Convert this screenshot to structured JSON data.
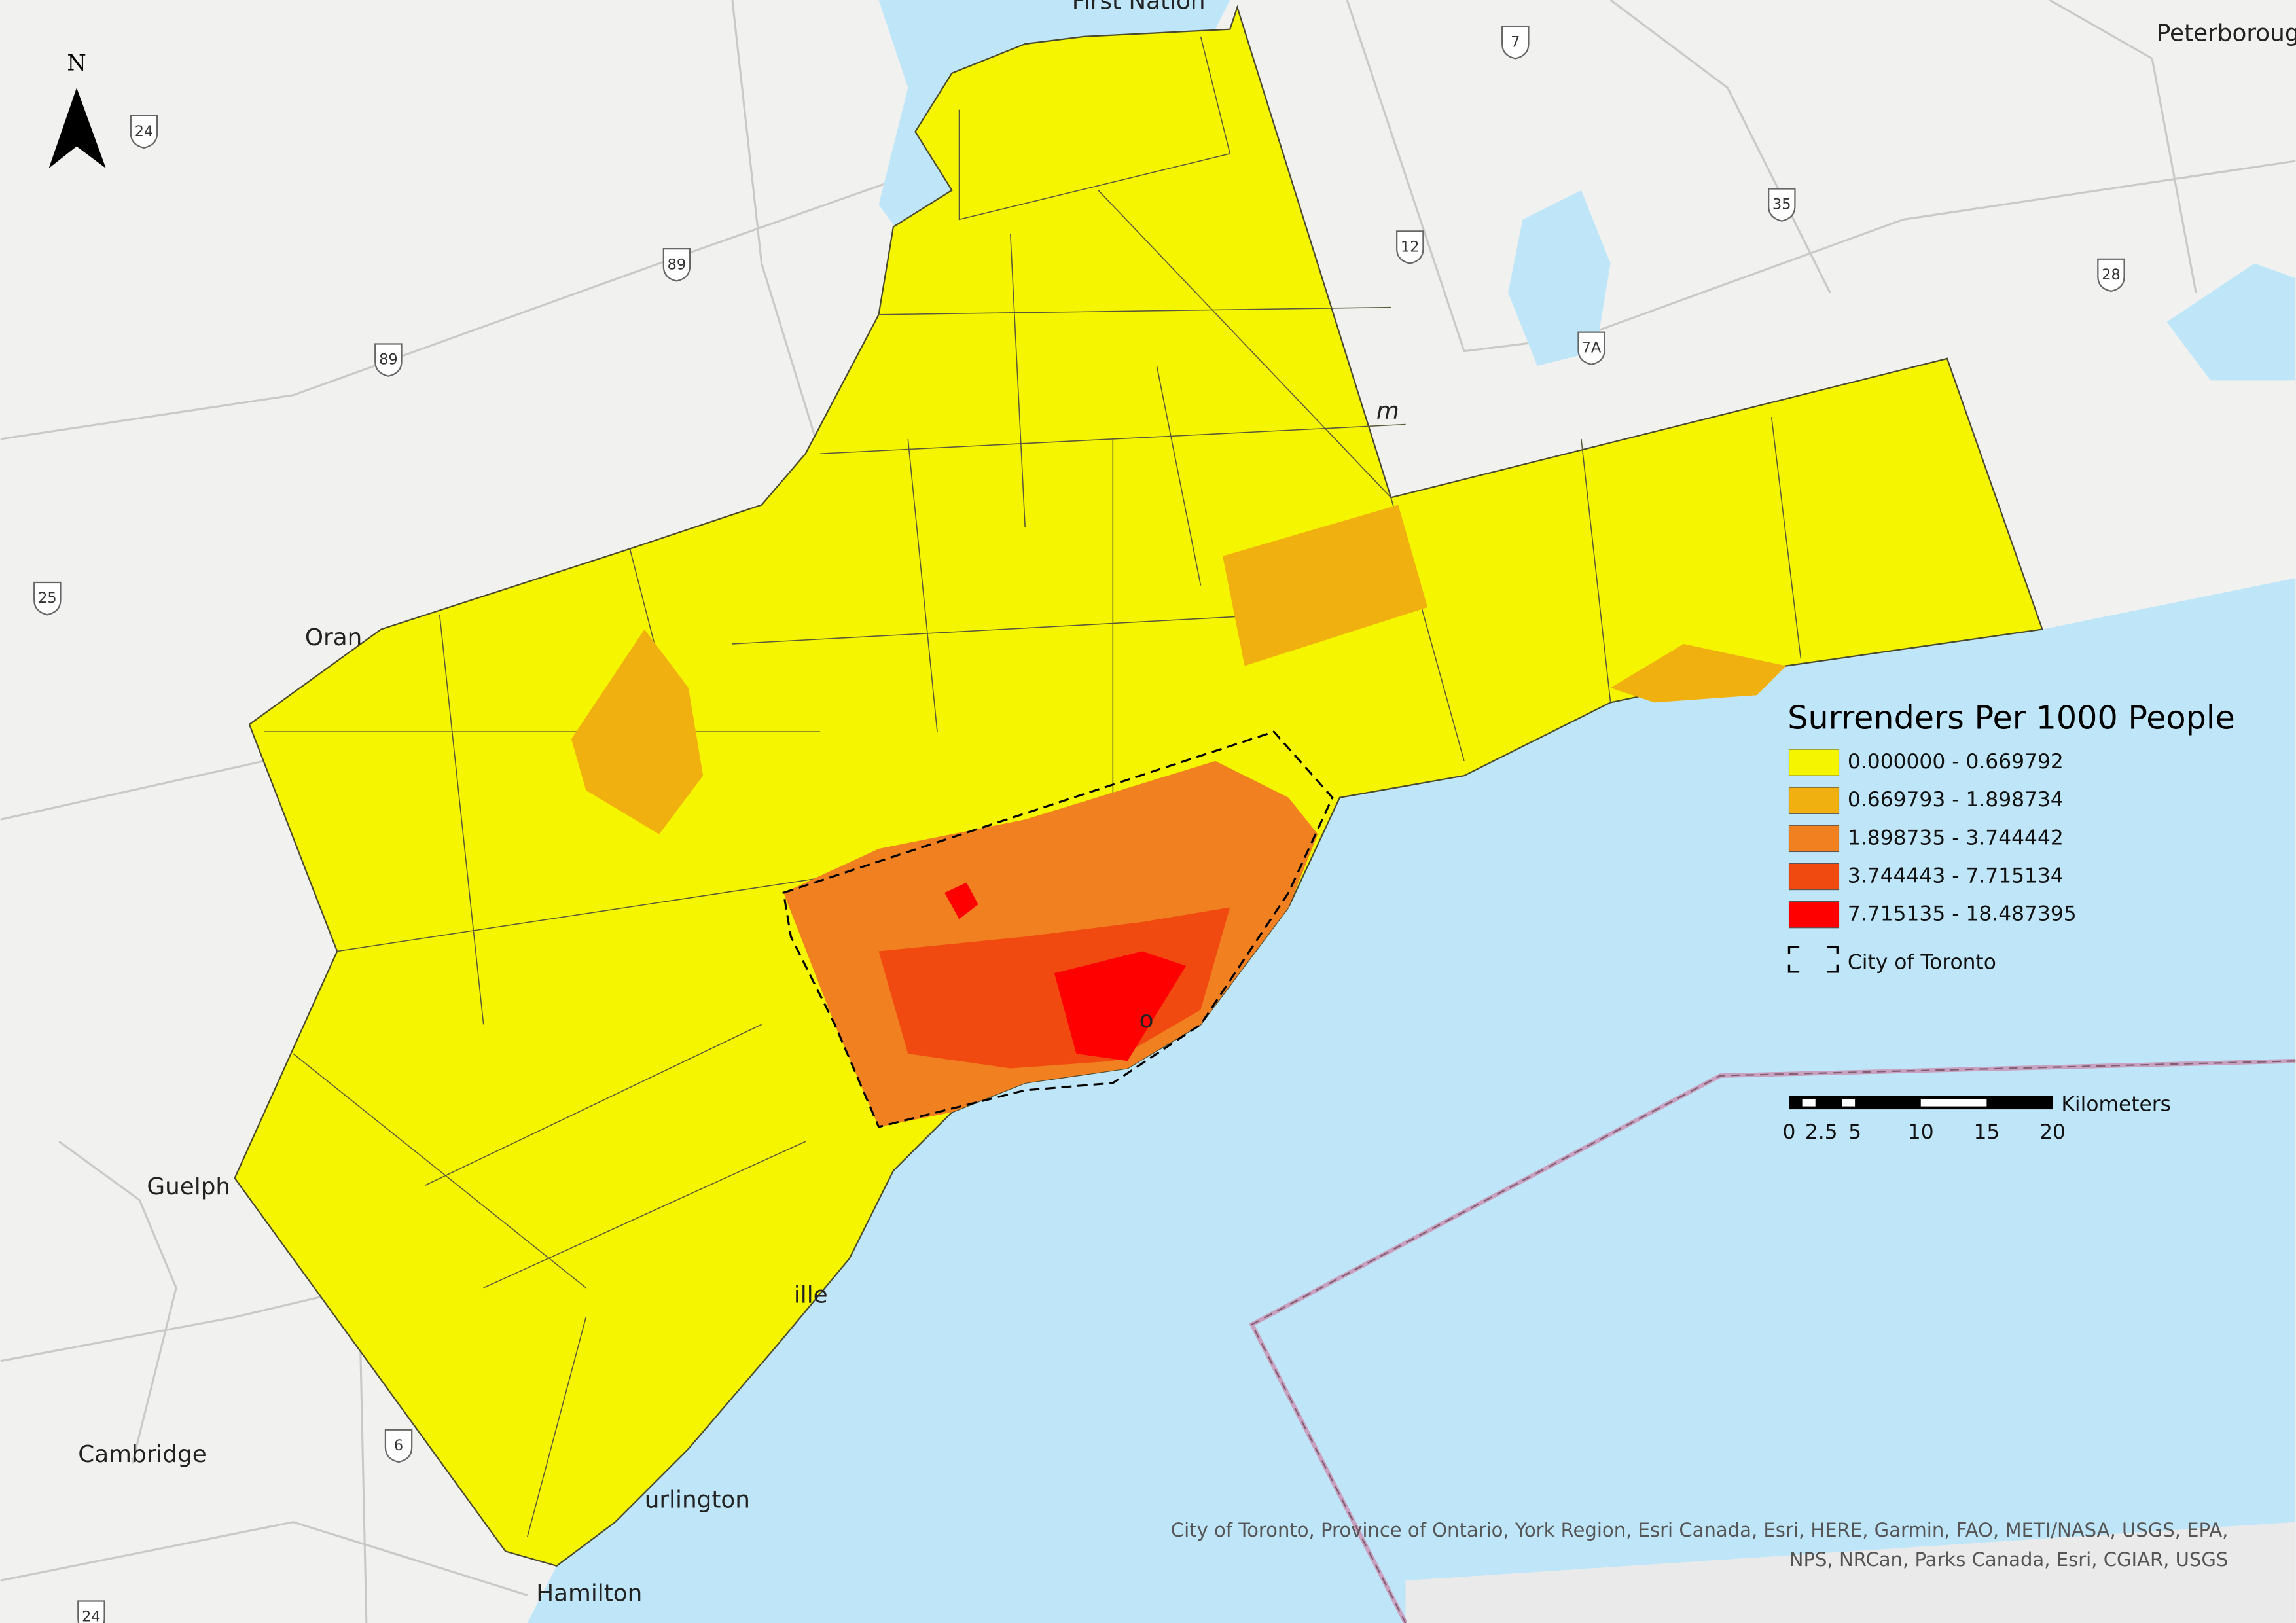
{
  "map": {
    "north_arrow": "N",
    "legend": {
      "title": "Surrenders Per 1000 People",
      "classes": [
        {
          "label": "0.000000 - 0.669792",
          "color": "#f5f500"
        },
        {
          "label": "0.669793 - 1.898734",
          "color": "#f0b010"
        },
        {
          "label": "1.898735 - 3.744442",
          "color": "#f08020"
        },
        {
          "label": "3.744443 - 7.715134",
          "color": "#f04a10"
        },
        {
          "label": "7.715135 - 18.487395",
          "color": "#ff0000"
        }
      ],
      "boundary_label": "City of Toronto"
    },
    "scale_bar": {
      "unit": "Kilometers",
      "labels": [
        "0",
        "2.5",
        "5",
        "10",
        "15",
        "20"
      ]
    },
    "places": [
      "Peterborough",
      "First Nation",
      "Oran",
      "Guelph",
      "Cambridge",
      "Hamilton",
      "urlington",
      "ille",
      "o",
      "m"
    ],
    "highway_shields": [
      "24",
      "89",
      "89",
      "25",
      "12",
      "35",
      "28",
      "7A",
      "7",
      "6",
      "24"
    ],
    "attribution": [
      "City of Toronto, Province of Ontario, York Region, Esri Canada, Esri, HERE, Garmin, FAO, METI/NASA, USGS, EPA,",
      "NPS, NRCan, Parks Canada, Esri, CGIAR, USGS"
    ]
  }
}
